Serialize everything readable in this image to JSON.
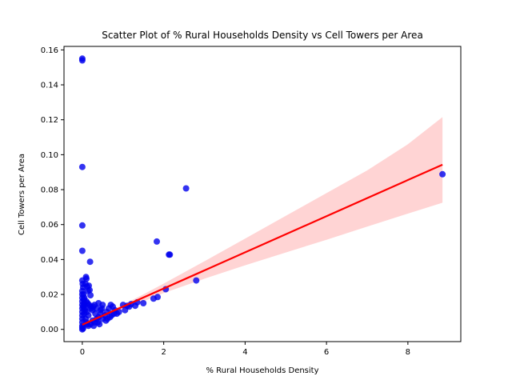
{
  "chart_data": {
    "type": "scatter",
    "title": "Scatter Plot of % Rural Households Density vs Cell Towers per Area",
    "xlabel": "% Rural Households Density",
    "ylabel": "Cell Towers per Area",
    "xlim": [
      -0.45,
      9.3
    ],
    "ylim": [
      -0.007,
      0.162
    ],
    "xticks": [
      0,
      2,
      4,
      6,
      8
    ],
    "yticks": [
      0.0,
      0.02,
      0.04,
      0.06,
      0.08,
      0.1,
      0.12,
      0.14,
      0.16
    ],
    "xtick_labels": [
      "0",
      "2",
      "4",
      "6",
      "8"
    ],
    "ytick_labels": [
      "0.00",
      "0.02",
      "0.04",
      "0.06",
      "0.08",
      "0.10",
      "0.12",
      "0.14",
      "0.16"
    ],
    "grid": false,
    "legend": "none",
    "colors": {
      "points": "#0000ee",
      "regression": "#ff0000",
      "ci_band": "#ffcccc"
    },
    "points": [
      [
        0.0,
        0.155
      ],
      [
        0.0,
        0.154
      ],
      [
        0.0,
        0.093
      ],
      [
        0.0,
        0.0595
      ],
      [
        0.0,
        0.045
      ],
      [
        0.19,
        0.0387
      ],
      [
        1.83,
        0.0503
      ],
      [
        2.55,
        0.0807
      ],
      [
        2.13,
        0.0428
      ],
      [
        2.15,
        0.0428
      ],
      [
        2.8,
        0.028
      ],
      [
        8.85,
        0.0888
      ],
      [
        2.05,
        0.023
      ],
      [
        1.85,
        0.0185
      ],
      [
        1.75,
        0.0176
      ],
      [
        0.0,
        0.028
      ],
      [
        0.01,
        0.026
      ],
      [
        0.02,
        0.024
      ],
      [
        0.0,
        0.022
      ],
      [
        0.0,
        0.02
      ],
      [
        0.0,
        0.018
      ],
      [
        0.0,
        0.016
      ],
      [
        0.0,
        0.014
      ],
      [
        0.0,
        0.012
      ],
      [
        0.0,
        0.01
      ],
      [
        0.0,
        0.008
      ],
      [
        0.0,
        0.006
      ],
      [
        0.0,
        0.004
      ],
      [
        0.0,
        0.002
      ],
      [
        0.0,
        0.001
      ],
      [
        0.0,
        0.0
      ],
      [
        0.02,
        0.0005
      ],
      [
        0.05,
        0.018
      ],
      [
        0.05,
        0.015
      ],
      [
        0.06,
        0.012
      ],
      [
        0.08,
        0.026
      ],
      [
        0.09,
        0.03
      ],
      [
        0.1,
        0.029
      ],
      [
        0.12,
        0.0245
      ],
      [
        0.14,
        0.022
      ],
      [
        0.16,
        0.025
      ],
      [
        0.18,
        0.0225
      ],
      [
        0.2,
        0.0195
      ],
      [
        0.05,
        0.009
      ],
      [
        0.08,
        0.006
      ],
      [
        0.1,
        0.004
      ],
      [
        0.12,
        0.003
      ],
      [
        0.15,
        0.002
      ],
      [
        0.2,
        0.013
      ],
      [
        0.25,
        0.011
      ],
      [
        0.3,
        0.014
      ],
      [
        0.35,
        0.012
      ],
      [
        0.4,
        0.015
      ],
      [
        0.45,
        0.011
      ],
      [
        0.5,
        0.014
      ],
      [
        0.25,
        0.005
      ],
      [
        0.3,
        0.004
      ],
      [
        0.35,
        0.006
      ],
      [
        0.4,
        0.007
      ],
      [
        0.45,
        0.009
      ],
      [
        0.5,
        0.006
      ],
      [
        0.55,
        0.008
      ],
      [
        0.6,
        0.01
      ],
      [
        0.65,
        0.012
      ],
      [
        0.7,
        0.014
      ],
      [
        0.75,
        0.013
      ],
      [
        0.8,
        0.011
      ],
      [
        0.85,
        0.009
      ],
      [
        0.9,
        0.01
      ],
      [
        1.0,
        0.014
      ],
      [
        1.05,
        0.011
      ],
      [
        1.1,
        0.0135
      ],
      [
        1.15,
        0.013
      ],
      [
        1.2,
        0.0145
      ],
      [
        1.3,
        0.0135
      ],
      [
        1.35,
        0.0155
      ],
      [
        1.5,
        0.015
      ],
      [
        0.15,
        0.008
      ],
      [
        0.2,
        0.003
      ],
      [
        0.28,
        0.002
      ],
      [
        0.32,
        0.009
      ],
      [
        0.38,
        0.004
      ],
      [
        0.42,
        0.003
      ],
      [
        0.48,
        0.012
      ],
      [
        0.58,
        0.005
      ],
      [
        0.62,
        0.006
      ],
      [
        0.68,
        0.007
      ],
      [
        0.72,
        0.008
      ],
      [
        0.78,
        0.009
      ],
      [
        0.1,
        0.016
      ],
      [
        0.13,
        0.015
      ],
      [
        0.17,
        0.014
      ],
      [
        0.22,
        0.012
      ],
      [
        0.27,
        0.013
      ],
      [
        0.03,
        0.02
      ],
      [
        0.04,
        0.017
      ],
      [
        0.06,
        0.014
      ],
      [
        0.07,
        0.011
      ],
      [
        0.11,
        0.01
      ],
      [
        0.02,
        0.013
      ]
    ],
    "regression": {
      "x": [
        0.0,
        8.85
      ],
      "y": [
        0.0027,
        0.0943
      ]
    },
    "ci_band": {
      "x": [
        0.0,
        0.5,
        1.0,
        1.5,
        2.0,
        3.0,
        4.0,
        5.0,
        6.0,
        7.0,
        8.0,
        8.85
      ],
      "upper": [
        0.0045,
        0.0088,
        0.0142,
        0.02,
        0.0262,
        0.039,
        0.052,
        0.065,
        0.078,
        0.091,
        0.106,
        0.1215
      ],
      "lower": [
        0.001,
        0.0063,
        0.0112,
        0.016,
        0.0208,
        0.029,
        0.0367,
        0.044,
        0.0513,
        0.0588,
        0.0663,
        0.0725
      ]
    }
  }
}
